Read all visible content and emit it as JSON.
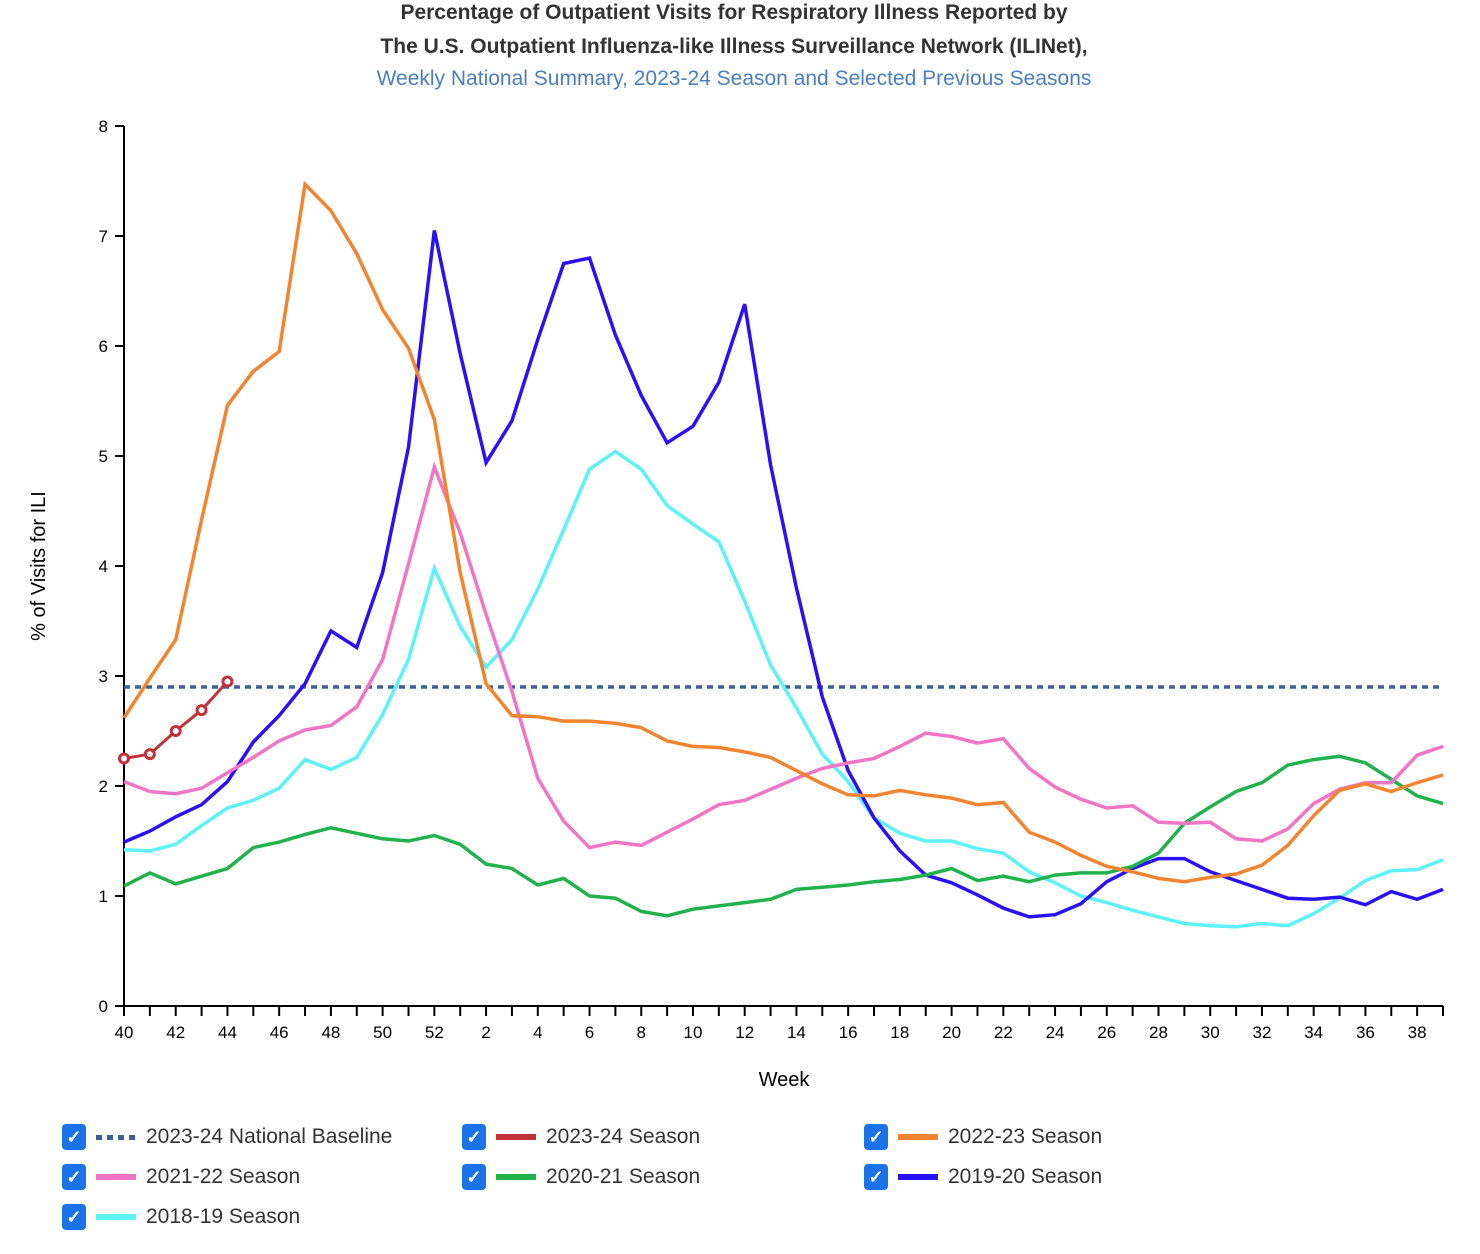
{
  "header": {
    "title_line1": "Percentage of Outpatient Visits for Respiratory Illness Reported by",
    "title_line2": "The U.S. Outpatient Influenza-like Illness Surveillance Network (ILINet),",
    "subtitle": "Weekly National Summary, 2023-24 Season and Selected Previous Seasons"
  },
  "legend": {
    "items": [
      {
        "label": "2023-24 National Baseline",
        "checked": true,
        "color": "#3a6096",
        "style": "dotted"
      },
      {
        "label": "2023-24 Season",
        "checked": true,
        "color": "#c0313a",
        "style": "solid"
      },
      {
        "label": "2022-23 Season",
        "checked": true,
        "color": "#f28430",
        "style": "solid"
      },
      {
        "label": "2021-22 Season",
        "checked": true,
        "color": "#f274c5",
        "style": "solid"
      },
      {
        "label": "2020-21 Season",
        "checked": true,
        "color": "#22b24c",
        "style": "solid"
      },
      {
        "label": "2019-20 Season",
        "checked": true,
        "color": "#2a10f5",
        "style": "solid"
      },
      {
        "label": "2018-19 Season",
        "checked": true,
        "color": "#5cf2f7",
        "style": "solid"
      }
    ],
    "check_glyph": "✓"
  },
  "chart_data": {
    "type": "line",
    "title": "Percentage of Outpatient Visits for Respiratory Illness Reported by The U.S. Outpatient Influenza-like Illness Surveillance Network (ILINet), Weekly National Summary, 2023-24 Season and Selected Previous Seasons",
    "xlabel": "Week",
    "ylabel": "% of Visits for ILI",
    "ylim": [
      0,
      8
    ],
    "yticks": [
      0,
      1,
      2,
      3,
      4,
      5,
      6,
      7,
      8
    ],
    "x": [
      40,
      41,
      42,
      43,
      44,
      45,
      46,
      47,
      48,
      49,
      50,
      51,
      52,
      1,
      2,
      3,
      4,
      5,
      6,
      7,
      8,
      9,
      10,
      11,
      12,
      13,
      14,
      15,
      16,
      17,
      18,
      19,
      20,
      21,
      22,
      23,
      24,
      25,
      26,
      27,
      28,
      29,
      30,
      31,
      32,
      33,
      34,
      35,
      36,
      37,
      38,
      39
    ],
    "xtick_labels": [
      "40",
      "42",
      "44",
      "46",
      "48",
      "50",
      "52",
      "2",
      "4",
      "6",
      "8",
      "10",
      "12",
      "14",
      "16",
      "18",
      "20",
      "22",
      "24",
      "26",
      "28",
      "30",
      "32",
      "34",
      "36",
      "38"
    ],
    "grid": false,
    "legend_position": "bottom",
    "baseline": {
      "name": "2023-24 National Baseline",
      "value": 2.9
    },
    "series": [
      {
        "name": "2023-24 Season",
        "markers": true,
        "values": [
          2.25,
          2.29,
          2.5,
          2.69,
          2.95
        ]
      },
      {
        "name": "2022-23 Season",
        "values": [
          2.62,
          2.98,
          3.33,
          4.42,
          5.46,
          5.77,
          5.95,
          7.47,
          7.23,
          6.84,
          6.33,
          5.98,
          5.33,
          3.94,
          2.93,
          2.64,
          2.63,
          2.59,
          2.59,
          2.57,
          2.53,
          2.41,
          2.36,
          2.35,
          2.31,
          2.26,
          2.14,
          2.02,
          1.92,
          1.91,
          1.96,
          1.92,
          1.89,
          1.83,
          1.85,
          1.58,
          1.49,
          1.37,
          1.27,
          1.22,
          1.16,
          1.13,
          1.17,
          1.2,
          1.28,
          1.46,
          1.73,
          1.96,
          2.02,
          1.95,
          2.03,
          2.1
        ]
      },
      {
        "name": "2021-22 Season",
        "values": [
          2.04,
          1.95,
          1.93,
          1.98,
          2.12,
          2.26,
          2.41,
          2.51,
          2.55,
          2.72,
          3.15,
          4.02,
          4.9,
          4.3,
          3.56,
          2.86,
          2.07,
          1.68,
          1.44,
          1.49,
          1.46,
          1.58,
          1.7,
          1.83,
          1.87,
          1.97,
          2.07,
          2.16,
          2.21,
          2.25,
          2.36,
          2.48,
          2.45,
          2.39,
          2.43,
          2.16,
          1.99,
          1.88,
          1.8,
          1.82,
          1.67,
          1.66,
          1.67,
          1.52,
          1.5,
          1.61,
          1.84,
          1.97,
          2.03,
          2.03,
          2.28,
          2.36
        ]
      },
      {
        "name": "2020-21 Season",
        "values": [
          1.09,
          1.21,
          1.11,
          1.18,
          1.25,
          1.44,
          1.49,
          1.56,
          1.62,
          1.57,
          1.52,
          1.5,
          1.55,
          1.47,
          1.29,
          1.25,
          1.1,
          1.16,
          1.0,
          0.98,
          0.86,
          0.82,
          0.88,
          0.91,
          0.94,
          0.97,
          1.06,
          1.08,
          1.1,
          1.13,
          1.15,
          1.19,
          1.25,
          1.14,
          1.18,
          1.13,
          1.19,
          1.21,
          1.21,
          1.27,
          1.39,
          1.66,
          1.81,
          1.95,
          2.03,
          2.19,
          2.24,
          2.27,
          2.21,
          2.06,
          1.91,
          1.84
        ]
      },
      {
        "name": "2019-20 Season",
        "values": [
          1.49,
          1.59,
          1.72,
          1.83,
          2.04,
          2.4,
          2.64,
          2.93,
          3.41,
          3.26,
          3.94,
          5.08,
          7.05,
          5.93,
          4.94,
          5.32,
          6.06,
          6.75,
          6.8,
          6.1,
          5.55,
          5.12,
          5.27,
          5.67,
          6.38,
          4.92,
          3.8,
          2.81,
          2.14,
          1.71,
          1.41,
          1.19,
          1.12,
          1.01,
          0.89,
          0.81,
          0.83,
          0.93,
          1.13,
          1.25,
          1.34,
          1.34,
          1.22,
          1.14,
          1.06,
          0.98,
          0.97,
          0.99,
          0.92,
          1.04,
          0.97,
          1.06
        ]
      },
      {
        "name": "2018-19 Season",
        "values": [
          1.42,
          1.41,
          1.47,
          1.64,
          1.8,
          1.87,
          1.98,
          2.24,
          2.15,
          2.26,
          2.65,
          3.15,
          3.98,
          3.45,
          3.08,
          3.33,
          3.79,
          4.33,
          4.88,
          5.04,
          4.88,
          4.55,
          4.38,
          4.22,
          3.68,
          3.1,
          2.71,
          2.29,
          2.04,
          1.71,
          1.57,
          1.5,
          1.5,
          1.43,
          1.39,
          1.22,
          1.12,
          1.0,
          0.94,
          0.87,
          0.81,
          0.75,
          0.73,
          0.72,
          0.75,
          0.73,
          0.84,
          0.98,
          1.14,
          1.23,
          1.24,
          1.33
        ]
      }
    ]
  }
}
